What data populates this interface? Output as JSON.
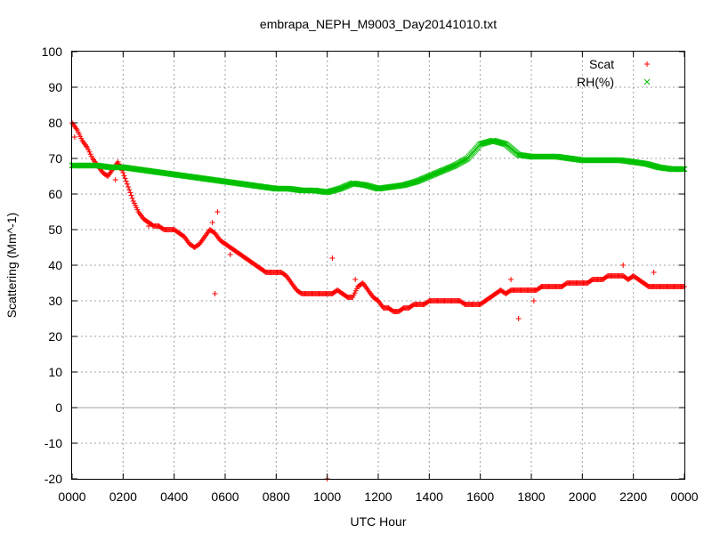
{
  "chart_data": {
    "type": "scatter",
    "title": "embrapa_NEPH_M9003_Day20141010.txt",
    "xlabel": "UTC Hour",
    "ylabel": "Scattering (Mm^-1)",
    "xlim": [
      0,
      24
    ],
    "ylim": [
      -20,
      100
    ],
    "grid": true,
    "legend_position": "top-right",
    "x_ticks": [
      {
        "value": 0,
        "label": "0000"
      },
      {
        "value": 2,
        "label": "0200"
      },
      {
        "value": 4,
        "label": "0400"
      },
      {
        "value": 6,
        "label": "0600"
      },
      {
        "value": 8,
        "label": "0800"
      },
      {
        "value": 10,
        "label": "1000"
      },
      {
        "value": 12,
        "label": "1200"
      },
      {
        "value": 14,
        "label": "1400"
      },
      {
        "value": 16,
        "label": "1600"
      },
      {
        "value": 18,
        "label": "1800"
      },
      {
        "value": 20,
        "label": "2000"
      },
      {
        "value": 22,
        "label": "2200"
      },
      {
        "value": 24,
        "label": "0000"
      }
    ],
    "y_ticks": [
      {
        "value": -20,
        "label": "-20"
      },
      {
        "value": -10,
        "label": "-10"
      },
      {
        "value": 0,
        "label": "0"
      },
      {
        "value": 10,
        "label": "10"
      },
      {
        "value": 20,
        "label": "20"
      },
      {
        "value": 30,
        "label": "30"
      },
      {
        "value": 40,
        "label": "40"
      },
      {
        "value": 50,
        "label": "50"
      },
      {
        "value": 60,
        "label": "60"
      },
      {
        "value": 70,
        "label": "70"
      },
      {
        "value": 80,
        "label": "80"
      },
      {
        "value": 90,
        "label": "90"
      },
      {
        "value": 100,
        "label": "100"
      }
    ],
    "series": [
      {
        "name": "Scat",
        "color": "#ff0000",
        "marker": "plus",
        "x": [
          0.0,
          0.2,
          0.4,
          0.6,
          0.8,
          1.0,
          1.2,
          1.4,
          1.6,
          1.8,
          2.0,
          2.2,
          2.4,
          2.6,
          2.8,
          3.0,
          3.2,
          3.4,
          3.6,
          3.8,
          4.0,
          4.2,
          4.4,
          4.6,
          4.8,
          5.0,
          5.2,
          5.4,
          5.6,
          5.8,
          6.0,
          6.2,
          6.4,
          6.6,
          6.8,
          7.0,
          7.2,
          7.4,
          7.6,
          7.8,
          8.0,
          8.2,
          8.4,
          8.6,
          8.8,
          9.0,
          9.2,
          9.4,
          9.6,
          9.8,
          10.0,
          10.2,
          10.4,
          10.6,
          10.8,
          11.0,
          11.2,
          11.4,
          11.6,
          11.8,
          12.0,
          12.2,
          12.4,
          12.6,
          12.8,
          13.0,
          13.2,
          13.4,
          13.6,
          13.8,
          14.0,
          14.2,
          14.4,
          14.6,
          14.8,
          15.0,
          15.2,
          15.4,
          15.6,
          15.8,
          16.0,
          16.2,
          16.4,
          16.6,
          16.8,
          17.0,
          17.2,
          17.4,
          17.6,
          17.8,
          18.0,
          18.2,
          18.4,
          18.6,
          18.8,
          19.0,
          19.2,
          19.4,
          19.6,
          19.8,
          20.0,
          20.2,
          20.4,
          20.6,
          20.8,
          21.0,
          21.2,
          21.4,
          21.6,
          21.8,
          22.0,
          22.2,
          22.4,
          22.6,
          22.8,
          23.0,
          23.2,
          23.4,
          23.6,
          23.8,
          24.0
        ],
        "y": [
          80,
          78,
          75,
          73,
          70,
          68,
          66,
          65,
          67,
          69,
          66,
          62,
          58,
          55,
          53,
          52,
          51,
          51,
          50,
          50,
          50,
          49,
          48,
          46,
          45,
          46,
          48,
          50,
          49,
          47,
          46,
          45,
          44,
          43,
          42,
          41,
          40,
          39,
          38,
          38,
          38,
          38,
          37,
          35,
          33,
          32,
          32,
          32,
          32,
          32,
          32,
          32,
          33,
          32,
          31,
          31,
          34,
          35,
          33,
          31,
          30,
          28,
          28,
          27,
          27,
          28,
          28,
          29,
          29,
          29,
          30,
          30,
          30,
          30,
          30,
          30,
          30,
          29,
          29,
          29,
          29,
          30,
          31,
          32,
          33,
          32,
          33,
          33,
          33,
          33,
          33,
          33,
          34,
          34,
          34,
          34,
          34,
          35,
          35,
          35,
          35,
          35,
          36,
          36,
          36,
          37,
          37,
          37,
          37,
          36,
          37,
          36,
          35,
          34,
          34,
          34,
          34,
          34,
          34,
          34,
          34
        ],
        "outliers_x": [
          0.1,
          1.7,
          3.0,
          5.6,
          5.7,
          5.5,
          6.2,
          10.0,
          10.2,
          11.1,
          17.2,
          17.5,
          18.1,
          21.6,
          22.8
        ],
        "outliers_y": [
          76,
          64,
          51,
          32,
          55,
          52,
          43,
          -20,
          42,
          36,
          36,
          25,
          30,
          40,
          38
        ]
      },
      {
        "name": "RH(%)",
        "color": "#00c000",
        "marker": "cross",
        "x": [
          0.0,
          0.5,
          1.0,
          1.5,
          2.0,
          2.5,
          3.0,
          3.5,
          4.0,
          4.5,
          5.0,
          5.5,
          6.0,
          6.5,
          7.0,
          7.5,
          8.0,
          8.5,
          9.0,
          9.5,
          10.0,
          10.5,
          11.0,
          11.5,
          12.0,
          12.5,
          13.0,
          13.5,
          14.0,
          14.5,
          15.0,
          15.5,
          16.0,
          16.5,
          17.0,
          17.5,
          18.0,
          18.5,
          19.0,
          19.5,
          20.0,
          20.5,
          21.0,
          21.5,
          22.0,
          22.5,
          23.0,
          23.5,
          24.0
        ],
        "y": [
          68,
          68,
          68,
          67.5,
          67.5,
          67,
          66.5,
          66,
          65.5,
          65,
          64.5,
          64,
          63.5,
          63,
          62.5,
          62,
          61.5,
          61.5,
          61,
          61,
          60.5,
          61.5,
          63,
          62.5,
          61.5,
          62,
          62.5,
          63.5,
          65,
          66.5,
          68,
          70,
          74,
          75,
          74,
          71,
          70.5,
          70.5,
          70.5,
          70,
          69.5,
          69.5,
          69.5,
          69.5,
          69,
          68.5,
          67.5,
          67,
          67
        ]
      }
    ]
  }
}
